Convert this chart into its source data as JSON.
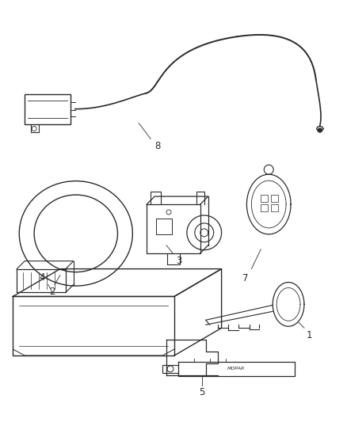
{
  "background_color": "#ffffff",
  "fig_width": 4.38,
  "fig_height": 5.33,
  "dpi": 100,
  "line_color": "#2a2a2a",
  "label_fontsize": 8.5,
  "text_color": "#2a2a2a"
}
